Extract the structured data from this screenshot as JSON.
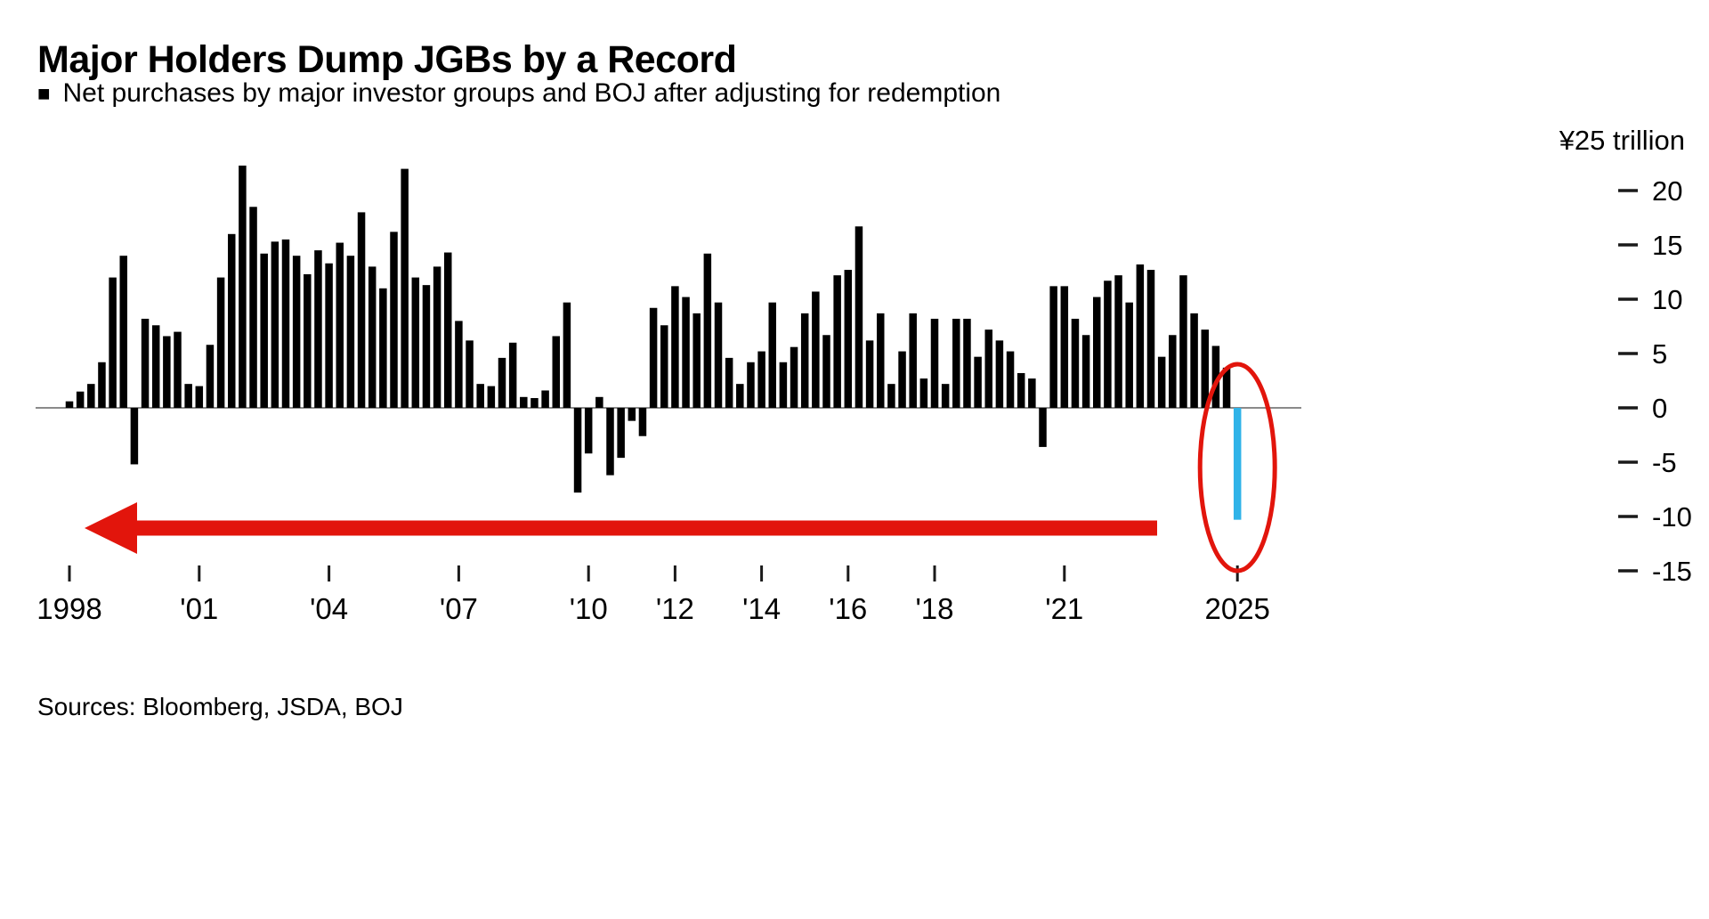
{
  "header": {
    "title": "Major Holders Dump JGBs by a Record",
    "subtitle_bullet": "■",
    "subtitle": "Net purchases by major investor groups and BOJ after adjusting for redemption"
  },
  "footer": {
    "source": "Sources: Bloomberg, JSDA, BOJ"
  },
  "colors": {
    "bar": "#000000",
    "highlight_blue": "#2fb3e8",
    "annotation_red": "#e2150c",
    "axis_gray": "#8a8a8a",
    "tick_black": "#1a1a1a"
  },
  "chart_data": {
    "type": "bar",
    "title": "Major Holders Dump JGBs by a Record",
    "subtitle": "Net purchases by major investor groups and BOJ after adjusting for redemption",
    "unit_label": "¥25 trillion",
    "period": "quarterly",
    "start_year": 1998,
    "y_ticks": [
      20,
      15,
      10,
      5,
      0,
      -5,
      -10,
      -15
    ],
    "y_range": [
      -16.5,
      23.5
    ],
    "grid": "off",
    "legend": "none",
    "x_tick_labels": [
      {
        "year": 1998,
        "label": "1998"
      },
      {
        "year": 2001,
        "label": "'01"
      },
      {
        "year": 2004,
        "label": "'04"
      },
      {
        "year": 2007,
        "label": "'07"
      },
      {
        "year": 2010,
        "label": "'10"
      },
      {
        "year": 2012,
        "label": "'12"
      },
      {
        "year": 2014,
        "label": "'14"
      },
      {
        "year": 2016,
        "label": "'16"
      },
      {
        "year": 2018,
        "label": "'18"
      },
      {
        "year": 2021,
        "label": "'21"
      },
      {
        "year": 2025,
        "label": "2025"
      }
    ],
    "values": [
      0.6,
      1.5,
      2.2,
      4.2,
      12.0,
      14.0,
      -5.2,
      8.2,
      7.6,
      6.6,
      7.0,
      2.2,
      2.0,
      5.8,
      12.0,
      16.0,
      22.3,
      18.5,
      14.2,
      15.3,
      15.5,
      14.0,
      12.3,
      14.5,
      13.3,
      15.2,
      14.0,
      18.0,
      13.0,
      11.0,
      16.2,
      22.0,
      12.0,
      11.3,
      13.0,
      14.3,
      8.0,
      6.2,
      2.2,
      2.0,
      4.6,
      6.0,
      1.0,
      0.9,
      1.6,
      6.6,
      9.7,
      -7.8,
      -4.2,
      1.0,
      -6.2,
      -4.6,
      -1.2,
      -2.6,
      9.2,
      7.6,
      11.2,
      10.2,
      8.7,
      14.2,
      9.7,
      4.6,
      2.2,
      4.2,
      5.2,
      9.7,
      4.2,
      5.6,
      8.7,
      10.7,
      6.7,
      12.2,
      12.7,
      16.7,
      6.2,
      8.7,
      2.2,
      5.2,
      8.7,
      2.7,
      8.2,
      2.2,
      8.2,
      8.2,
      4.7,
      7.2,
      6.2,
      5.2,
      3.2,
      2.7,
      -3.6,
      11.2,
      11.2,
      8.2,
      6.7,
      10.2,
      11.7,
      12.2,
      9.7,
      13.2,
      12.7,
      4.7,
      6.7,
      12.2,
      8.7,
      7.2,
      5.7,
      3.7,
      -10.3
    ],
    "highlight_index": 108,
    "highlight_value": -10.3,
    "highlight_year": "2025",
    "annotations": {
      "arrow": {
        "shape": "horizontal-arrow",
        "direction": "left",
        "color": "#e2150c"
      },
      "ellipse": {
        "shape": "circle-highlight",
        "target": "last-bar-2025",
        "color": "#e2150c"
      }
    }
  }
}
